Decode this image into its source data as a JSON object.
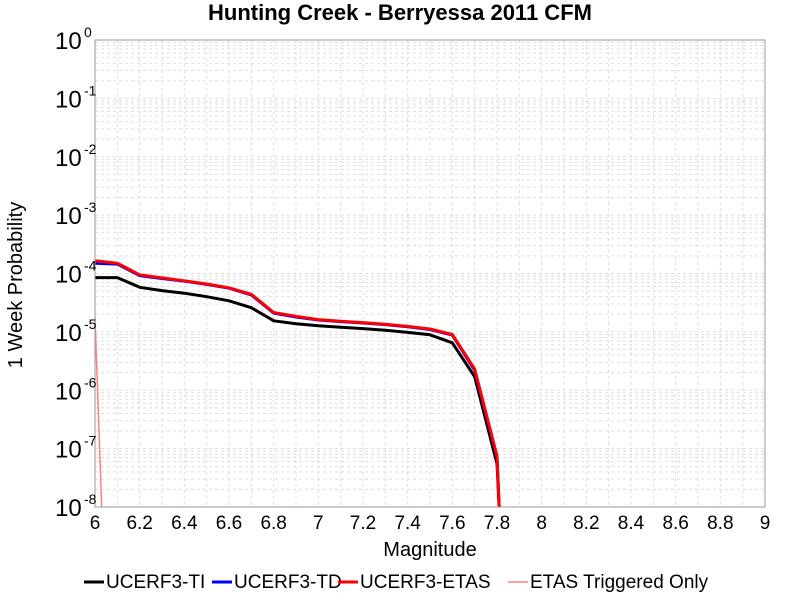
{
  "chart_data": {
    "type": "line",
    "title": "Hunting Creek - Berryessa 2011 CFM",
    "xlabel": "Magnitude",
    "ylabel": "1 Week Probability",
    "xlim": [
      6,
      9
    ],
    "ylim": [
      1e-08,
      1
    ],
    "yscale": "log",
    "grid": true,
    "legend_position": "bottom",
    "x_ticks": [
      "6",
      "6.2",
      "6.4",
      "6.6",
      "6.8",
      "7",
      "7.2",
      "7.4",
      "7.6",
      "7.8",
      "8",
      "8.2",
      "8.4",
      "8.6",
      "8.8",
      "9"
    ],
    "y_ticks": [
      {
        "base": "10",
        "exp": "0"
      },
      {
        "base": "10",
        "exp": "-1"
      },
      {
        "base": "10",
        "exp": "-2"
      },
      {
        "base": "10",
        "exp": "-3"
      },
      {
        "base": "10",
        "exp": "-4"
      },
      {
        "base": "10",
        "exp": "-5"
      },
      {
        "base": "10",
        "exp": "-6"
      },
      {
        "base": "10",
        "exp": "-7"
      },
      {
        "base": "10",
        "exp": "-8"
      }
    ],
    "series": [
      {
        "name": "UCERF3-TI",
        "color": "#000000",
        "x": [
          6.0,
          6.1,
          6.2,
          6.3,
          6.4,
          6.5,
          6.6,
          6.7,
          6.8,
          6.9,
          7.0,
          7.1,
          7.2,
          7.3,
          7.4,
          7.5,
          7.6,
          7.7,
          7.8,
          7.81
        ],
        "y": [
          8.5e-05,
          8.5e-05,
          5.8e-05,
          5.1e-05,
          4.6e-05,
          4e-05,
          3.4e-05,
          2.6e-05,
          1.55e-05,
          1.38e-05,
          1.27e-05,
          1.2e-05,
          1.14e-05,
          1.07e-05,
          9.8e-06,
          8.9e-06,
          6.5e-06,
          1.7e-06,
          5.5e-08,
          1e-08
        ]
      },
      {
        "name": "UCERF3-TD",
        "color": "#0000ff",
        "x": [
          6.0,
          6.1,
          6.2,
          6.3,
          6.4,
          6.5,
          6.6,
          6.7,
          6.8,
          6.9,
          7.0,
          7.1,
          7.2,
          7.3,
          7.4,
          7.5,
          7.6,
          7.7,
          7.8,
          7.81
        ],
        "y": [
          0.00015,
          0.000145,
          9.2e-05,
          8.2e-05,
          7.4e-05,
          6.5e-05,
          5.6e-05,
          4.3e-05,
          2.1e-05,
          1.8e-05,
          1.6e-05,
          1.5e-05,
          1.42e-05,
          1.33e-05,
          1.22e-05,
          1.1e-05,
          8.8e-06,
          2.2e-06,
          7e-08,
          1e-08
        ]
      },
      {
        "name": "UCERF3-ETAS",
        "color": "#ff0000",
        "x": [
          6.0,
          6.1,
          6.2,
          6.3,
          6.4,
          6.5,
          6.6,
          6.7,
          6.8,
          6.9,
          7.0,
          7.1,
          7.2,
          7.3,
          7.4,
          7.5,
          7.6,
          7.7,
          7.8,
          7.81
        ],
        "y": [
          0.000165,
          0.00015,
          9.5e-05,
          8.4e-05,
          7.5e-05,
          6.6e-05,
          5.7e-05,
          4.4e-05,
          2.15e-05,
          1.85e-05,
          1.62e-05,
          1.52e-05,
          1.44e-05,
          1.35e-05,
          1.24e-05,
          1.12e-05,
          9e-06,
          2.3e-06,
          7.5e-08,
          1e-08
        ]
      },
      {
        "name": "ETAS Triggered Only",
        "color": "#ff7f7f",
        "x": [
          6.0,
          6.03
        ],
        "y": [
          1.8e-05,
          1e-08
        ]
      }
    ]
  }
}
